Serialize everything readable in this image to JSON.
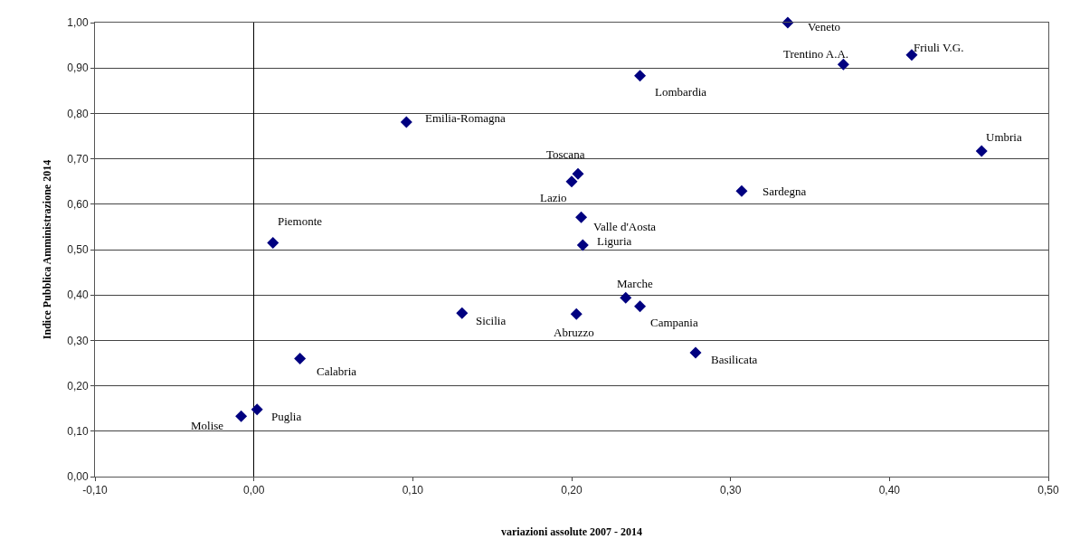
{
  "chart_data": {
    "type": "scatter",
    "xlabel": "variazioni assolute 2007 - 2014",
    "ylabel": "Indice Pubblica Amministrazione 2014",
    "x": [
      0.336,
      0.371,
      0.414,
      0.243,
      0.458,
      0.096,
      0.204,
      0.2,
      0.307,
      0.206,
      0.207,
      0.012,
      0.234,
      0.243,
      0.203,
      0.131,
      0.278,
      0.029,
      0.002,
      -0.008
    ],
    "series": [
      {
        "color": "#000080",
        "values": [
          1.0,
          0.908,
          0.929,
          0.883,
          0.717,
          0.781,
          0.667,
          0.65,
          0.629,
          0.571,
          0.51,
          0.515,
          0.394,
          0.375,
          0.358,
          0.36,
          0.273,
          0.26,
          0.148,
          0.133
        ]
      }
    ],
    "annotations": [
      {
        "text": "Veneto",
        "x": 0.336,
        "y": 1.0
      },
      {
        "text": "Trentino A.A.",
        "x": 0.371,
        "y": 0.908
      },
      {
        "text": "Friuli V.G.",
        "x": 0.414,
        "y": 0.929
      },
      {
        "text": "Lombardia",
        "x": 0.243,
        "y": 0.883
      },
      {
        "text": "Umbria",
        "x": 0.458,
        "y": 0.717
      },
      {
        "text": "Emilia-Romagna",
        "x": 0.096,
        "y": 0.781
      },
      {
        "text": "Toscana",
        "x": 0.204,
        "y": 0.667
      },
      {
        "text": "Lazio",
        "x": 0.2,
        "y": 0.65
      },
      {
        "text": "Sardegna",
        "x": 0.307,
        "y": 0.629
      },
      {
        "text": "Valle d'Aosta",
        "x": 0.206,
        "y": 0.571
      },
      {
        "text": "Liguria",
        "x": 0.207,
        "y": 0.51
      },
      {
        "text": "Piemonte",
        "x": 0.012,
        "y": 0.515
      },
      {
        "text": "Marche",
        "x": 0.234,
        "y": 0.394
      },
      {
        "text": "Campania",
        "x": 0.243,
        "y": 0.375
      },
      {
        "text": "Abruzzo",
        "x": 0.203,
        "y": 0.358
      },
      {
        "text": "Sicilia",
        "x": 0.131,
        "y": 0.36
      },
      {
        "text": "Basilicata",
        "x": 0.278,
        "y": 0.273
      },
      {
        "text": "Calabria",
        "x": 0.029,
        "y": 0.26
      },
      {
        "text": "Puglia",
        "x": 0.002,
        "y": 0.148
      },
      {
        "text": "Molise",
        "x": -0.008,
        "y": 0.133
      }
    ],
    "xlim": [
      -0.1,
      0.5
    ],
    "xticks": [
      {
        "value": -0.1,
        "label": "-0,10"
      },
      {
        "value": 0,
        "label": "0,00"
      },
      {
        "value": 0.1,
        "label": "0,10"
      },
      {
        "value": 0.2,
        "label": "0,20"
      },
      {
        "value": 0.3,
        "label": "0,30"
      },
      {
        "value": 0.4,
        "label": "0,40"
      },
      {
        "value": 0.5,
        "label": "0,50"
      }
    ],
    "ylim": [
      0,
      1
    ],
    "yticks": [
      {
        "value": 0,
        "label": "0,00"
      },
      {
        "value": 0.1,
        "label": "0,10"
      },
      {
        "value": 0.2,
        "label": "0,20"
      },
      {
        "value": 0.3,
        "label": "0,30"
      },
      {
        "value": 0.4,
        "label": "0,40"
      },
      {
        "value": 0.5,
        "label": "0,50"
      },
      {
        "value": 0.6,
        "label": "0,60"
      },
      {
        "value": 0.7,
        "label": "0,70"
      },
      {
        "value": 0.8,
        "label": "0,80"
      },
      {
        "value": 0.9,
        "label": "0,90"
      },
      {
        "value": 1,
        "label": "1,00"
      }
    ],
    "grid": "y",
    "marker": "diamond"
  }
}
